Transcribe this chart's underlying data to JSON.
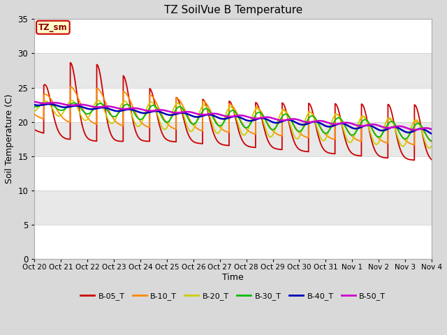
{
  "title": "TZ SoilVue B Temperature",
  "xlabel": "Time",
  "ylabel": "Soil Temperature (C)",
  "ylim": [
    0,
    35
  ],
  "yticks": [
    0,
    5,
    10,
    15,
    20,
    25,
    30,
    35
  ],
  "fig_bg": "#d9d9d9",
  "plot_bg": "#f0f0f0",
  "series": [
    {
      "label": "B-05_T",
      "color": "#cc0000"
    },
    {
      "label": "B-10_T",
      "color": "#ff8800"
    },
    {
      "label": "B-20_T",
      "color": "#cccc00"
    },
    {
      "label": "B-30_T",
      "color": "#00bb00"
    },
    {
      "label": "B-40_T",
      "color": "#0000bb"
    },
    {
      "label": "B-50_T",
      "color": "#cc00cc"
    }
  ],
  "xtick_labels": [
    "Oct 20",
    "Oct 21",
    "Oct 22",
    "Oct 23",
    "Oct 24",
    "Oct 25",
    "Oct 26",
    "Oct 27",
    "Oct 28",
    "Oct 29",
    "Oct 30",
    "Oct 31",
    "Nov 1",
    "Nov 2",
    "Nov 3",
    "Nov 4"
  ],
  "annotation_text": "TZ_sm",
  "annotation_bg": "#ffffcc",
  "annotation_border": "#cc0000",
  "band_colors": [
    "#ffffff",
    "#e0e0e0"
  ]
}
